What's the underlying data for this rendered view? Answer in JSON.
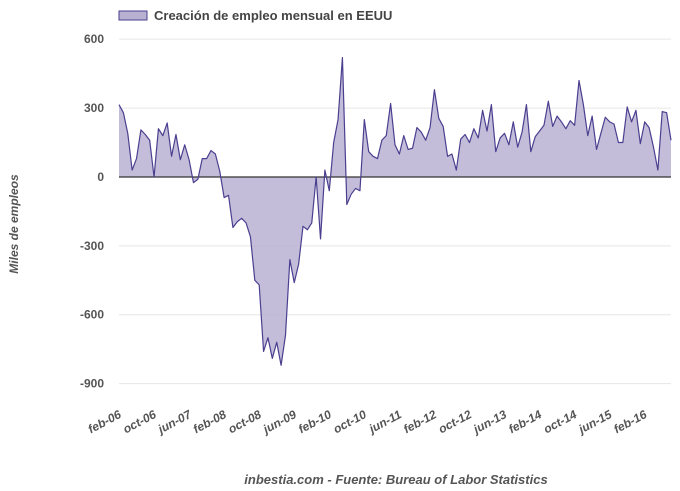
{
  "chart_data": {
    "type": "area",
    "legend": "Creación de empleo mensual en EEUU",
    "ylabel": "Miles de empleos",
    "source": "inbestia.com - Fuente: Bureau of Labor Statistics",
    "ylim": [
      -980,
      640
    ],
    "yticks": [
      600,
      300,
      0,
      -300,
      -600,
      -900
    ],
    "x_tick_labels": [
      "feb-06",
      "oct-06",
      "jun-07",
      "feb-08",
      "oct-08",
      "jun-09",
      "feb-10",
      "oct-10",
      "jun-11",
      "feb-12",
      "oct-12",
      "jun-13",
      "feb-14",
      "oct-14",
      "jun-15",
      "feb-16"
    ],
    "x_tick_step": 8,
    "colors": {
      "fill": "#b8b1d2",
      "line": "#4a3f8f",
      "zero": "#333333",
      "grid": "#e6e6e6"
    },
    "values": [
      315,
      280,
      190,
      30,
      80,
      205,
      185,
      160,
      0,
      210,
      180,
      235,
      90,
      185,
      75,
      140,
      75,
      -25,
      -10,
      80,
      80,
      115,
      100,
      25,
      -90,
      -80,
      -220,
      -195,
      -180,
      -200,
      -260,
      -450,
      -470,
      -760,
      -700,
      -790,
      -720,
      -820,
      -690,
      -360,
      -460,
      -380,
      -215,
      -230,
      -200,
      0,
      -270,
      30,
      -60,
      150,
      250,
      520,
      -120,
      -75,
      -50,
      -60,
      250,
      110,
      90,
      80,
      160,
      180,
      320,
      140,
      100,
      180,
      120,
      125,
      215,
      195,
      160,
      215,
      380,
      255,
      220,
      90,
      100,
      30,
      165,
      185,
      150,
      210,
      170,
      290,
      200,
      315,
      110,
      170,
      190,
      140,
      240,
      130,
      195,
      315,
      110,
      175,
      200,
      225,
      330,
      220,
      265,
      240,
      210,
      245,
      225,
      420,
      315,
      180,
      265,
      120,
      190,
      260,
      240,
      230,
      150,
      150,
      305,
      240,
      290,
      145,
      240,
      215,
      130,
      30,
      285,
      280,
      160
    ]
  }
}
